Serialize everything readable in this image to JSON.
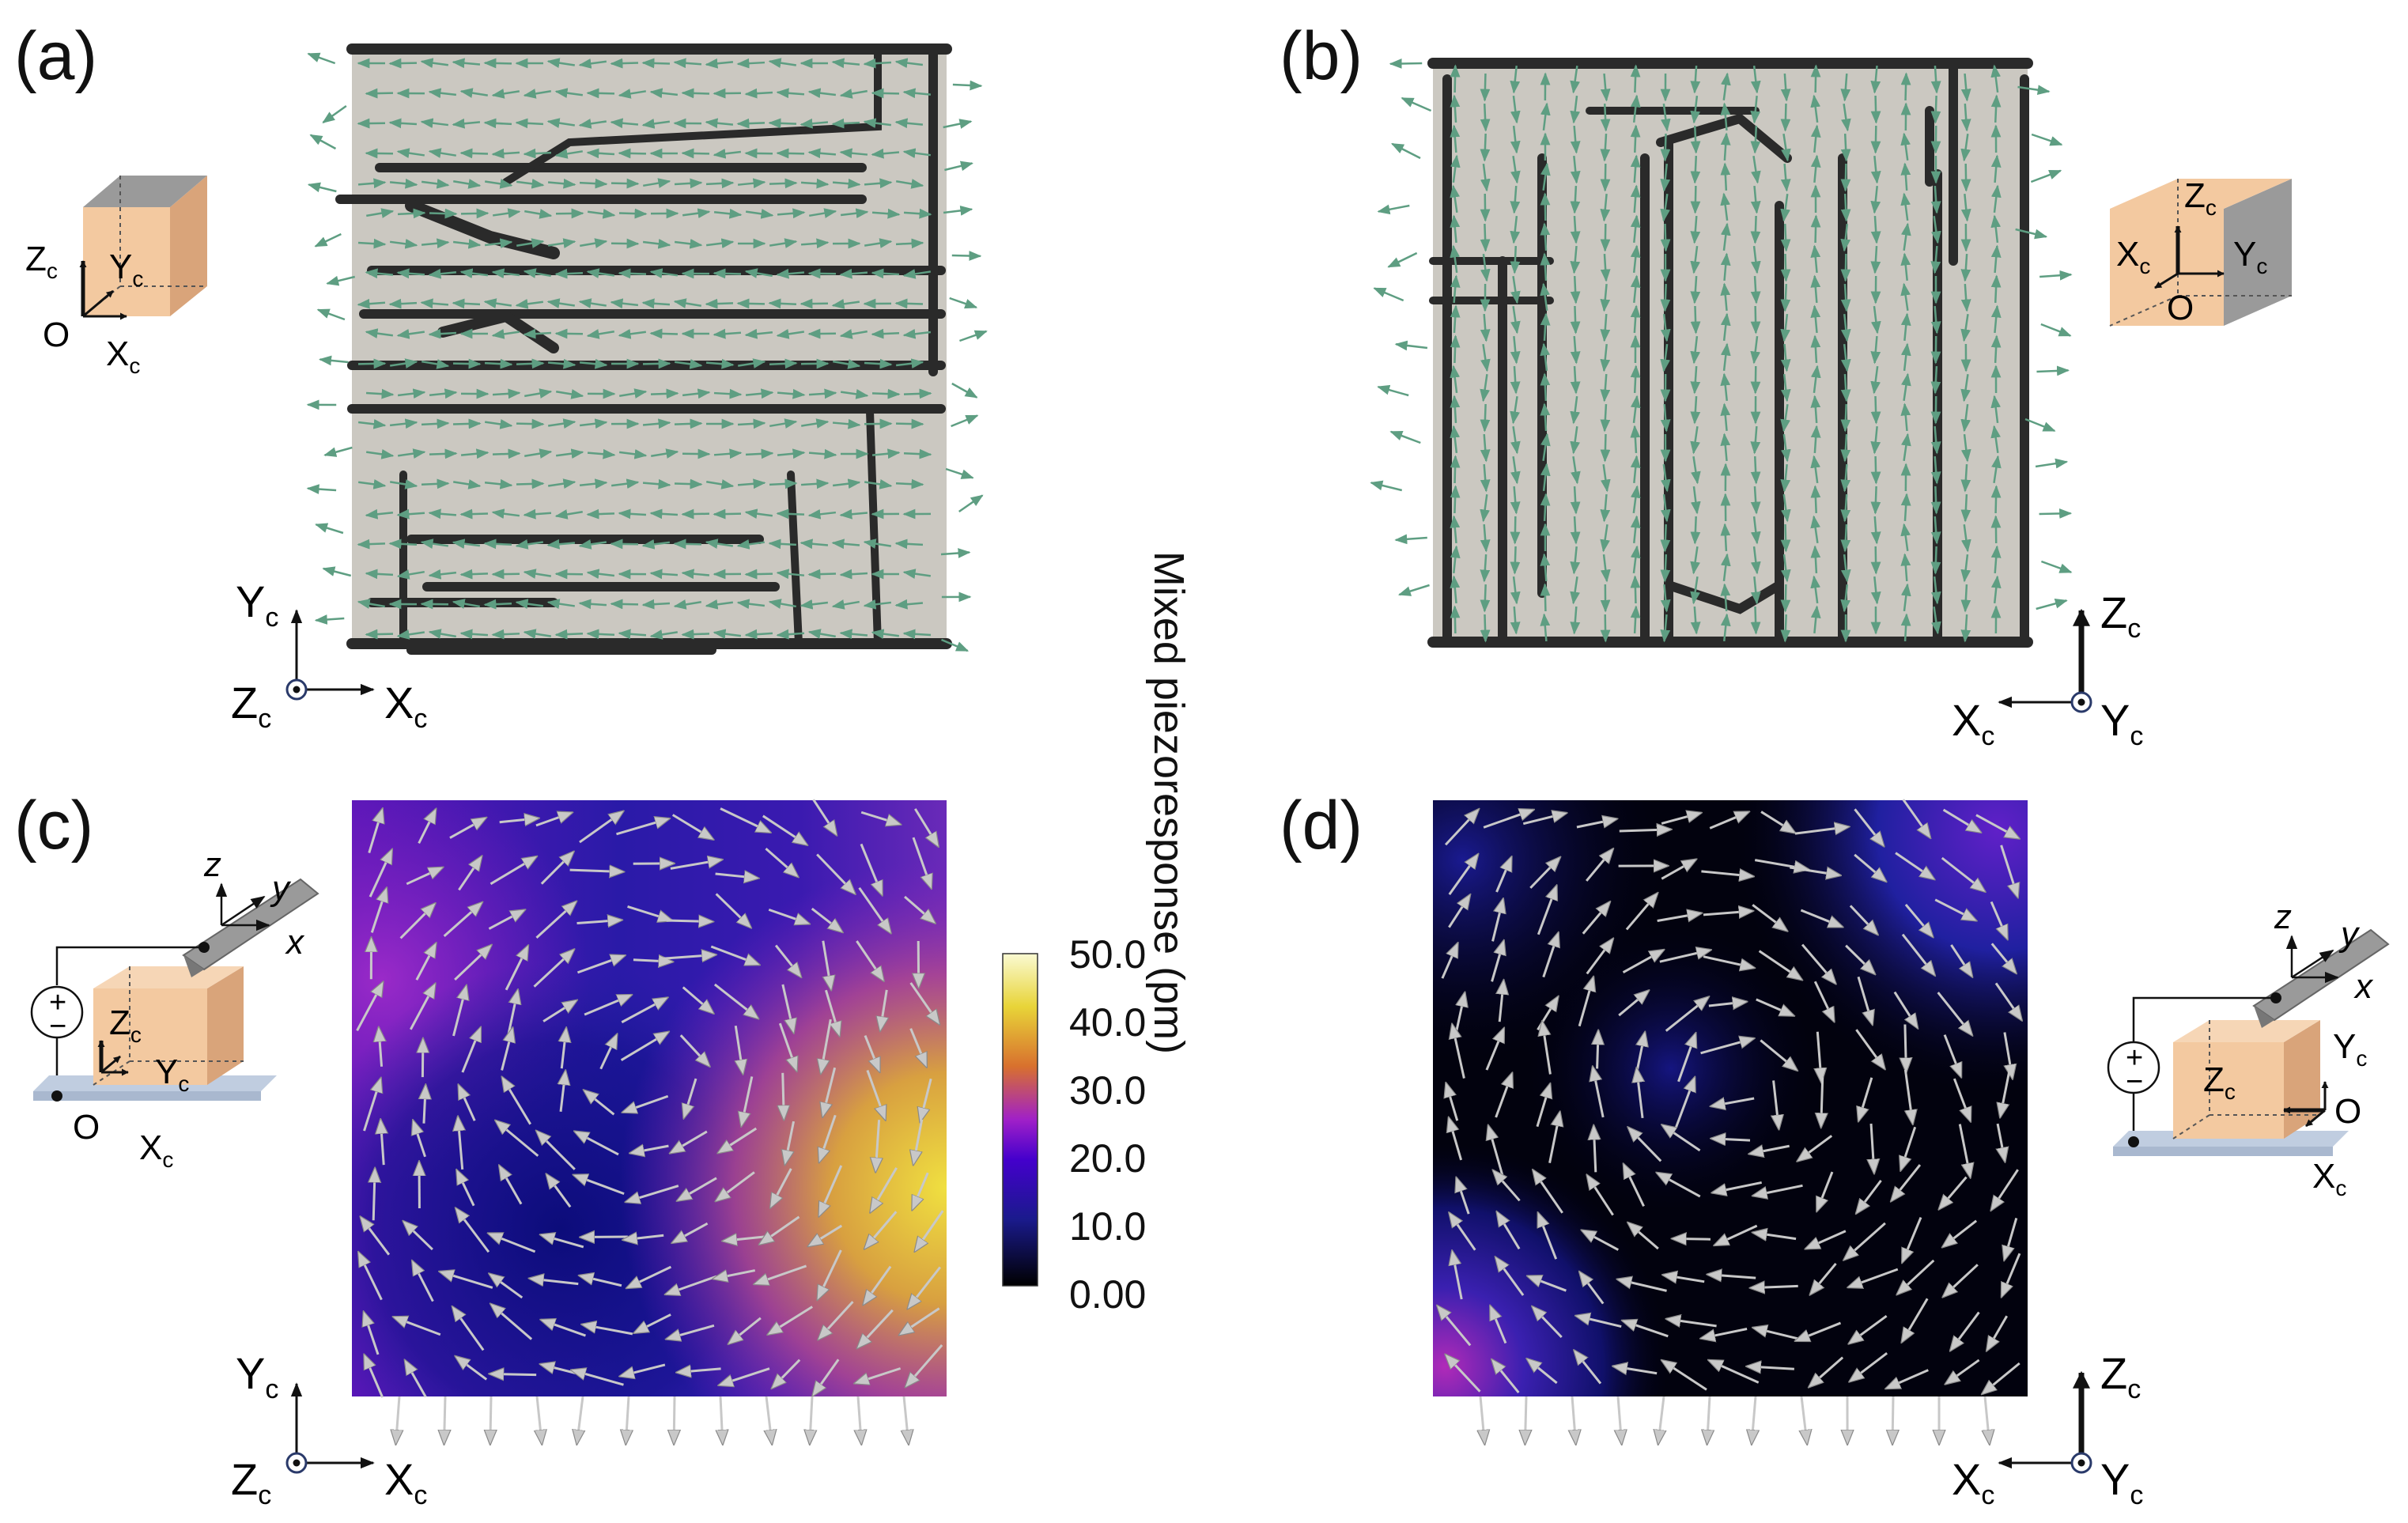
{
  "figure": {
    "panels": [
      {
        "id": "a",
        "label": "(a)"
      },
      {
        "id": "b",
        "label": "(b)"
      },
      {
        "id": "c",
        "label": "(c)"
      },
      {
        "id": "d",
        "label": "(d)"
      }
    ],
    "colorbar": {
      "title": "Mixed piezoresponse (pm)",
      "ticks": [
        "50.0",
        "40.0",
        "30.0",
        "20.0",
        "10.0",
        "0.00"
      ],
      "range": [
        0,
        50
      ]
    },
    "axes_glyphs": {
      "Xc": "X",
      "Yc": "Y",
      "Zc": "Z",
      "sub": "c",
      "origin": "O",
      "x": "x",
      "y": "y",
      "z": "z",
      "plus": "+",
      "minus": "−"
    },
    "colors": {
      "domain_fill": "#cbc8c1",
      "wall": "#2a2a2a",
      "arrow_green": "#5e9e82",
      "arrow_gray": "#c4c4c4",
      "cube_face": "#f3c9a0",
      "cube_side": "#d9a47a",
      "cube_top_gray": "#9a9a9a",
      "substrate": "#c0cde0",
      "cmap": [
        "#000000",
        "#1a1a8c",
        "#4400cc",
        "#a020c8",
        "#d8702e",
        "#e8d438",
        "#fafad2"
      ]
    },
    "icons": [
      "coordinate-cube-icon",
      "voltage-source-icon",
      "afm-tip-icon",
      "axis-triad-icon"
    ]
  }
}
